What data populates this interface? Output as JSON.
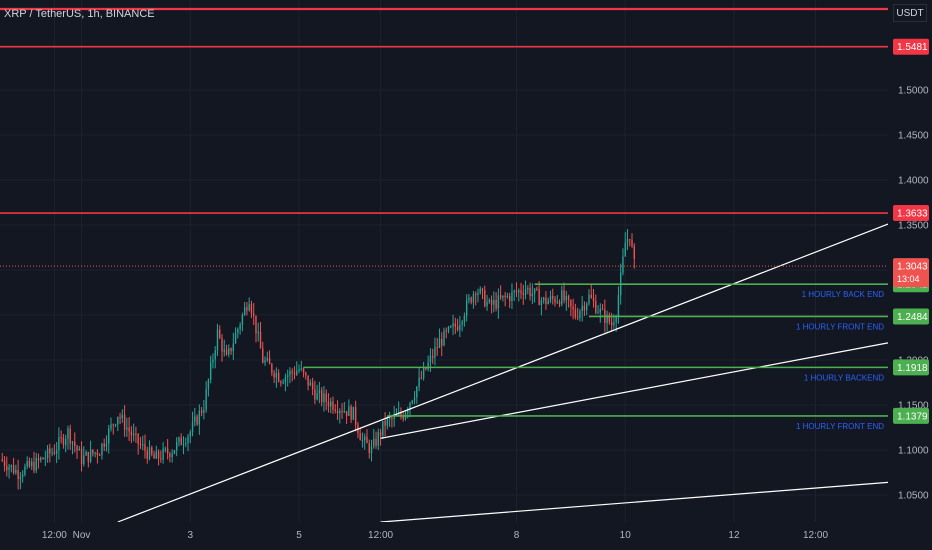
{
  "header": {
    "title": "XRP / TetherUS, 1h, BINANCE",
    "currency": "USDT"
  },
  "colors": {
    "background": "#131722",
    "grid": "#1e222d",
    "up": "#26a69a",
    "down": "#ef5350",
    "resistance": "#f23645",
    "support": "#4caf50",
    "trend": "#ffffff",
    "label_text": "#2962ff",
    "axis_text": "#b2b5be"
  },
  "chart_data": {
    "type": "candlestick",
    "title": "XRP / TetherUS, 1h, BINANCE",
    "y_axis": {
      "ticks": [
        1.05,
        1.1,
        1.15,
        1.2,
        1.25,
        1.3,
        1.35,
        1.4,
        1.45,
        1.5
      ],
      "tick_labels": [
        "1.0500",
        "1.1000",
        "1.1500",
        "1.2000",
        "1.2500",
        "1.3000",
        "1.3500",
        "1.4000",
        "1.4500",
        "1.5000"
      ],
      "range": [
        1.02,
        1.6
      ]
    },
    "x_axis": {
      "tick_labels": [
        "12:00",
        "Nov",
        "3",
        "5",
        "12:00",
        "8",
        "10",
        "12",
        "12:00"
      ],
      "tick_hours": [
        -36,
        -24,
        24,
        72,
        108,
        168,
        216,
        264,
        300
      ],
      "range_hours": [
        -60,
        332
      ]
    },
    "price_path": [
      [
        -60,
        1.09
      ],
      [
        -52,
        1.075
      ],
      [
        -44,
        1.085
      ],
      [
        -36,
        1.1
      ],
      [
        -30,
        1.12
      ],
      [
        -24,
        1.09
      ],
      [
        -16,
        1.1
      ],
      [
        -8,
        1.14
      ],
      [
        0,
        1.11
      ],
      [
        8,
        1.09
      ],
      [
        16,
        1.1
      ],
      [
        24,
        1.12
      ],
      [
        30,
        1.15
      ],
      [
        36,
        1.23
      ],
      [
        40,
        1.2
      ],
      [
        50,
        1.27
      ],
      [
        56,
        1.2
      ],
      [
        64,
        1.18
      ],
      [
        72,
        1.19
      ],
      [
        80,
        1.16
      ],
      [
        88,
        1.15
      ],
      [
        96,
        1.14
      ],
      [
        100,
        1.11
      ],
      [
        104,
        1.1
      ],
      [
        110,
        1.13
      ],
      [
        118,
        1.14
      ],
      [
        126,
        1.18
      ],
      [
        134,
        1.22
      ],
      [
        142,
        1.24
      ],
      [
        150,
        1.28
      ],
      [
        156,
        1.26
      ],
      [
        164,
        1.27
      ],
      [
        172,
        1.28
      ],
      [
        180,
        1.265
      ],
      [
        188,
        1.27
      ],
      [
        194,
        1.25
      ],
      [
        200,
        1.27
      ],
      [
        206,
        1.25
      ],
      [
        210,
        1.24
      ],
      [
        212,
        1.255
      ],
      [
        214,
        1.29
      ],
      [
        216,
        1.33
      ],
      [
        218,
        1.34
      ],
      [
        220,
        1.305
      ]
    ],
    "horizontal_levels": [
      {
        "value": 1.5481,
        "label": "1.5481",
        "kind": "resistance"
      },
      {
        "value": 1.3633,
        "label": "1.3633",
        "kind": "resistance"
      }
    ],
    "support_levels": [
      {
        "value": 1.2842,
        "label": "1.2842",
        "text": "1 HOURLY BACK END",
        "start_hour": 176
      },
      {
        "value": 1.2484,
        "label": "1.2484",
        "text": "1 HOURLY FRONT END",
        "start_hour": 200
      },
      {
        "value": 1.1918,
        "label": "1.1918",
        "text": "1 HOURLY BACKEND",
        "start_hour": 74
      },
      {
        "value": 1.1379,
        "label": "1.1379",
        "text": "1 HOURLY FRONT END",
        "start_hour": 111
      }
    ],
    "current_price": {
      "value": 1.3043,
      "label": "1.3043",
      "countdown": "13:04"
    },
    "trend_lines": [
      {
        "from": [
          -8,
          1.02
        ],
        "to": [
          332,
          1.351
        ]
      },
      {
        "from": [
          108,
          1.02
        ],
        "to": [
          332,
          1.064
        ]
      },
      {
        "from": [
          108,
          1.113
        ],
        "to": [
          332,
          1.219
        ]
      }
    ]
  }
}
